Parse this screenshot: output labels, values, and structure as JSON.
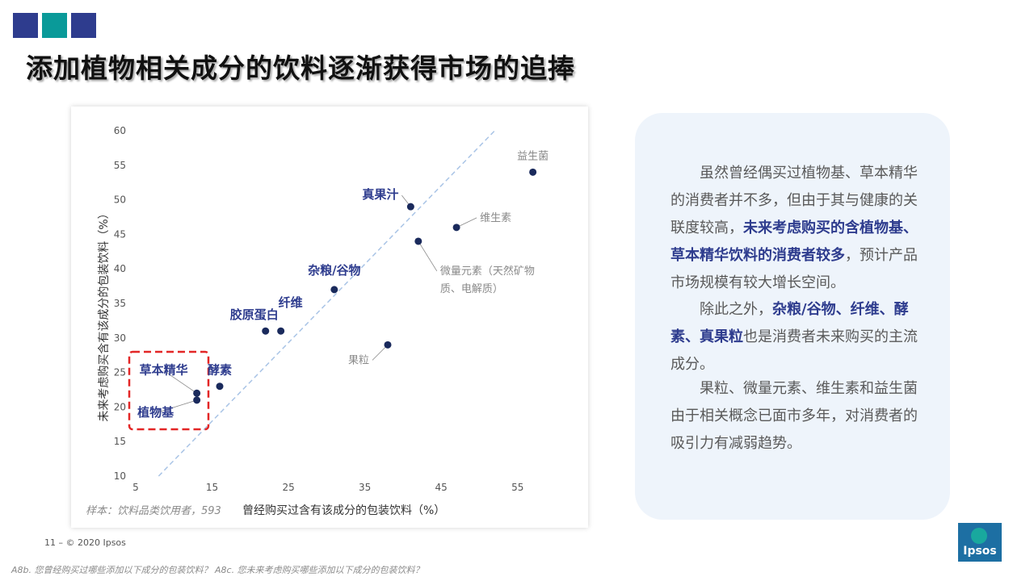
{
  "header": {
    "squares": [
      {
        "name": "blue",
        "color": "#2e3c8e"
      },
      {
        "name": "teal",
        "color": "#0a9a99"
      },
      {
        "name": "blue2",
        "color": "#2e3c8e"
      }
    ],
    "title": "添加植物相关成分的饮料逐渐获得市场的追捧"
  },
  "chart_data": {
    "type": "scatter",
    "xlabel": "曾经购买过含有该成分的包装饮料（%）",
    "ylabel": "未来考虑购买含有该成分的包装饮料（%）",
    "xlim": [
      5,
      60
    ],
    "ylim": [
      10,
      60
    ],
    "x_ticks": [
      "5",
      "15",
      "25",
      "35",
      "45",
      "55"
    ],
    "y_ticks": [
      "10",
      "15",
      "20",
      "25",
      "30",
      "35",
      "40",
      "45",
      "50",
      "55",
      "60"
    ],
    "reference_line": "y = x (dashed)",
    "point_color": "#1a2a5c",
    "points": [
      {
        "label": "益生菌",
        "x": 57,
        "y": 54,
        "emphasis": false
      },
      {
        "label": "真果汁",
        "x": 41,
        "y": 49,
        "emphasis": true
      },
      {
        "label": "维生素",
        "x": 47,
        "y": 46,
        "emphasis": false
      },
      {
        "label": "微量元素（天然矿物质、电解质）",
        "label_lines": [
          "微量元素（天然矿物",
          "质、电解质）"
        ],
        "x": 42,
        "y": 44,
        "emphasis": false
      },
      {
        "label": "杂粮/谷物",
        "x": 31,
        "y": 37,
        "emphasis": true
      },
      {
        "label": "纤维",
        "x": 24,
        "y": 31,
        "emphasis": true
      },
      {
        "label": "胶原蛋白",
        "x": 22,
        "y": 31,
        "emphasis": true
      },
      {
        "label": "果粒",
        "x": 38,
        "y": 29,
        "emphasis": false
      },
      {
        "label": "酵素",
        "x": 16,
        "y": 23,
        "emphasis": true
      },
      {
        "label": "草本精华",
        "x": 13,
        "y": 22,
        "emphasis": true
      },
      {
        "label": "植物基",
        "x": 13,
        "y": 21,
        "emphasis": true
      }
    ],
    "sample_note": "样本：饮料品类饮用者，593"
  },
  "text_panel": {
    "p1_a": "虽然曾经偶买过植物基、草本精华的消费者并不多，但由于其与健康的关联度较高，",
    "p1_b": "未来考虑购买的含植物基、草本精华饮料的消费者较多",
    "p1_c": "，预计产品市场规模有较大增长空间。",
    "p2_a": "除此之外，",
    "p2_b": "杂粮/谷物、纤维、酵素、真果粒",
    "p2_c": "也是消费者未来购买的主流成分。",
    "p3": "果粒、微量元素、维生素和益生菌由于相关概念已面市多年，对消费者的吸引力有减弱趋势。"
  },
  "footer": {
    "page": "11 –  © 2020 Ipsos",
    "footnote": "A8b. 您曾经购买过哪些添加以下成分的包装饮料？ A8c. 您未来考虑购买哪些添加以下成分的包装饮料？"
  },
  "logo": {
    "text": "Ipsos",
    "color": "#1d6fa3",
    "accent": "#19a89e"
  }
}
